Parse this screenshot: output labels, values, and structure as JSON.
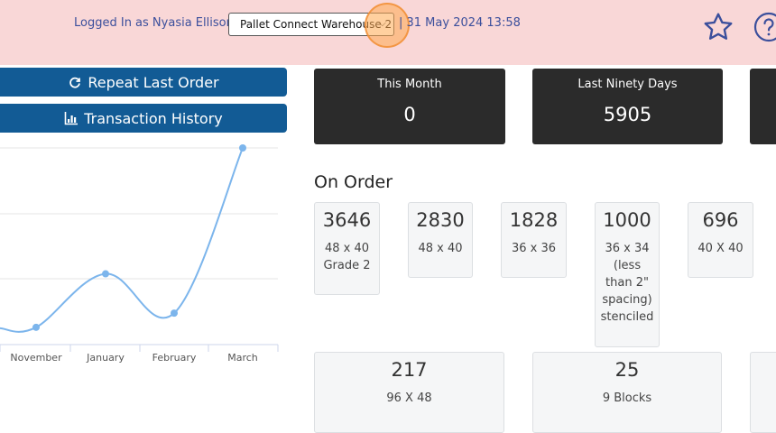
{
  "header": {
    "logged_in_text": "Logged In as Nyasia Ellison",
    "separator": "|",
    "warehouse_selected": "Pallet Connect Warehouse 2",
    "datetime_text": "| 31 May 2024 13:58"
  },
  "actions": {
    "repeat_last_order": "Repeat Last Order",
    "transaction_history": "Transaction History"
  },
  "chart_data": {
    "type": "line",
    "categories": [
      "November",
      "January",
      "February",
      "March"
    ],
    "values": [
      2,
      70,
      20,
      230
    ],
    "ylim": [
      -20,
      230
    ],
    "grid": true,
    "series_color": "#7cb5ec"
  },
  "stats": [
    {
      "label": "This Month",
      "value": "0"
    },
    {
      "label": "Last Ninety Days",
      "value": "5905"
    }
  ],
  "on_order": {
    "title": "On Order",
    "items": [
      {
        "qty": "3646",
        "desc": [
          "48 x 40",
          "Grade 2"
        ]
      },
      {
        "qty": "2830",
        "desc": [
          "48 x 40"
        ]
      },
      {
        "qty": "1828",
        "desc": [
          "36 x 36"
        ]
      },
      {
        "qty": "1000",
        "desc": [
          "36 x 34",
          "(less",
          "than 2\"",
          "spacing)",
          "stenciled"
        ]
      },
      {
        "qty": "696",
        "desc": [
          "40 X 40"
        ]
      },
      {
        "qty": "217",
        "desc": [
          "96 X 48"
        ]
      },
      {
        "qty": "25",
        "desc": [
          "9 Blocks"
        ]
      }
    ]
  },
  "icons": {
    "star": "star-icon",
    "help": "help-icon",
    "repeat": "refresh-icon",
    "history": "bar-chart-icon"
  },
  "colors": {
    "header_bg": "#f9d7d7",
    "header_text": "#3b4f9c",
    "button_bg": "#125b95",
    "stat_bg": "#2b2b2b"
  }
}
